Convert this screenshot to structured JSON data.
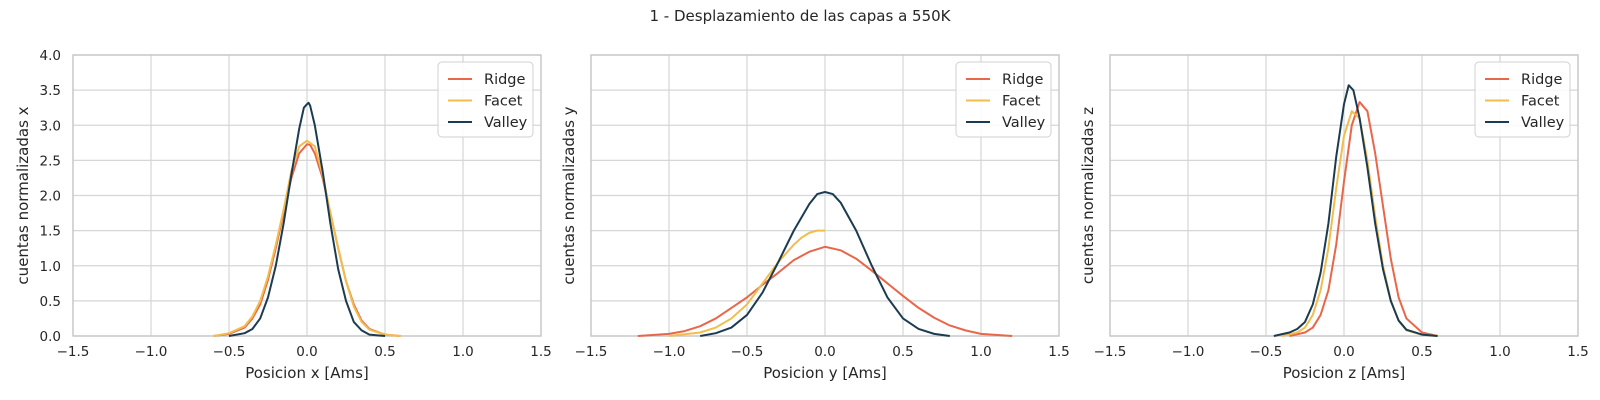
{
  "figure_title": "1 - Desplazamiento de las capas a 550K",
  "colors": {
    "Ridge": "#e8674a",
    "Facet": "#f2bd4c",
    "Valley": "#1b3c50",
    "grid": "#d6d6d6",
    "frame": "#c7c7c7"
  },
  "chart_data": [
    {
      "type": "line",
      "xlabel": "Posicion x [Ams]",
      "ylabel": "cuentas normalizadas x",
      "xlim": [
        -1.5,
        1.5
      ],
      "ylim": [
        0,
        4
      ],
      "xticks": [
        -1.5,
        -1.0,
        -0.5,
        0.0,
        0.5,
        1.0,
        1.5
      ],
      "yticks": [
        0.0,
        0.5,
        1.0,
        1.5,
        2.0,
        2.5,
        3.0,
        3.5,
        4.0
      ],
      "show_ytick_labels": true,
      "grid": true,
      "legend": "top-right",
      "series": [
        {
          "name": "Ridge",
          "x": [
            -0.6,
            -0.5,
            -0.4,
            -0.35,
            -0.3,
            -0.25,
            -0.2,
            -0.15,
            -0.1,
            -0.05,
            0.0,
            0.02,
            0.05,
            0.1,
            0.15,
            0.2,
            0.25,
            0.3,
            0.35,
            0.4,
            0.5,
            0.6
          ],
          "y": [
            0.0,
            0.03,
            0.12,
            0.25,
            0.45,
            0.8,
            1.25,
            1.75,
            2.25,
            2.6,
            2.73,
            2.72,
            2.6,
            2.25,
            1.75,
            1.25,
            0.78,
            0.45,
            0.22,
            0.1,
            0.02,
            0.0
          ]
        },
        {
          "name": "Facet",
          "x": [
            -0.6,
            -0.5,
            -0.4,
            -0.35,
            -0.3,
            -0.25,
            -0.2,
            -0.15,
            -0.1,
            -0.05,
            0.0,
            0.05,
            0.1,
            0.15,
            0.2,
            0.25,
            0.3,
            0.35,
            0.4,
            0.5,
            0.6
          ],
          "y": [
            0.0,
            0.04,
            0.14,
            0.28,
            0.5,
            0.85,
            1.3,
            1.8,
            2.35,
            2.7,
            2.78,
            2.7,
            2.3,
            1.75,
            1.25,
            0.78,
            0.42,
            0.2,
            0.09,
            0.02,
            0.0
          ]
        },
        {
          "name": "Valley",
          "x": [
            -0.5,
            -0.4,
            -0.35,
            -0.3,
            -0.25,
            -0.2,
            -0.15,
            -0.1,
            -0.05,
            -0.02,
            0.0,
            0.01,
            0.02,
            0.05,
            0.1,
            0.15,
            0.2,
            0.25,
            0.3,
            0.35,
            0.4,
            0.5
          ],
          "y": [
            0.0,
            0.04,
            0.1,
            0.25,
            0.55,
            1.0,
            1.6,
            2.3,
            2.95,
            3.25,
            3.3,
            3.32,
            3.28,
            3.0,
            2.35,
            1.6,
            0.95,
            0.5,
            0.2,
            0.08,
            0.02,
            0.0
          ]
        }
      ]
    },
    {
      "type": "line",
      "xlabel": "Posicion y [Ams]",
      "ylabel": "cuentas normalizadas y",
      "xlim": [
        -1.5,
        1.5
      ],
      "ylim": [
        0,
        4
      ],
      "xticks": [
        -1.5,
        -1.0,
        -0.5,
        0.0,
        0.5,
        1.0,
        1.5
      ],
      "yticks": [
        0.0,
        0.5,
        1.0,
        1.5,
        2.0,
        2.5,
        3.0,
        3.5,
        4.0
      ],
      "show_ytick_labels": false,
      "grid": true,
      "legend": "top-right",
      "series": [
        {
          "name": "Ridge",
          "x": [
            -1.2,
            -1.0,
            -0.9,
            -0.8,
            -0.7,
            -0.6,
            -0.5,
            -0.4,
            -0.3,
            -0.2,
            -0.1,
            0.0,
            0.1,
            0.2,
            0.3,
            0.4,
            0.5,
            0.6,
            0.7,
            0.8,
            0.9,
            1.0,
            1.2
          ],
          "y": [
            0.0,
            0.03,
            0.07,
            0.14,
            0.25,
            0.4,
            0.55,
            0.73,
            0.9,
            1.08,
            1.2,
            1.27,
            1.22,
            1.1,
            0.93,
            0.75,
            0.57,
            0.4,
            0.26,
            0.15,
            0.08,
            0.03,
            0.0
          ]
        },
        {
          "name": "Facet",
          "x": [
            -1.0,
            -0.8,
            -0.7,
            -0.6,
            -0.5,
            -0.4,
            -0.3,
            -0.2,
            -0.15,
            -0.1,
            -0.05,
            0.0
          ],
          "y": [
            0.0,
            0.05,
            0.12,
            0.25,
            0.45,
            0.75,
            1.05,
            1.3,
            1.4,
            1.47,
            1.5,
            1.5
          ]
        },
        {
          "name": "Valley",
          "x": [
            -0.8,
            -0.7,
            -0.6,
            -0.5,
            -0.4,
            -0.3,
            -0.2,
            -0.1,
            -0.05,
            0.0,
            0.05,
            0.1,
            0.2,
            0.3,
            0.4,
            0.5,
            0.6,
            0.7,
            0.8
          ],
          "y": [
            0.0,
            0.04,
            0.12,
            0.3,
            0.62,
            1.05,
            1.5,
            1.88,
            2.02,
            2.05,
            2.02,
            1.9,
            1.5,
            1.0,
            0.55,
            0.25,
            0.1,
            0.03,
            0.0
          ]
        }
      ]
    },
    {
      "type": "line",
      "xlabel": "Posicion z [Ams]",
      "ylabel": "cuentas normalizadas z",
      "xlim": [
        -1.5,
        1.5
      ],
      "ylim": [
        0,
        4
      ],
      "xticks": [
        -1.5,
        -1.0,
        -0.5,
        0.0,
        0.5,
        1.0,
        1.5
      ],
      "yticks": [
        0.0,
        0.5,
        1.0,
        1.5,
        2.0,
        2.5,
        3.0,
        3.5,
        4.0
      ],
      "show_ytick_labels": false,
      "grid": true,
      "legend": "top-right",
      "series": [
        {
          "name": "Ridge",
          "x": [
            -0.35,
            -0.25,
            -0.2,
            -0.15,
            -0.1,
            -0.05,
            0.0,
            0.05,
            0.1,
            0.15,
            0.2,
            0.25,
            0.3,
            0.35,
            0.4,
            0.5,
            0.6
          ],
          "y": [
            0.0,
            0.05,
            0.12,
            0.3,
            0.65,
            1.3,
            2.2,
            3.0,
            3.33,
            3.2,
            2.6,
            1.85,
            1.1,
            0.55,
            0.25,
            0.05,
            0.0
          ]
        },
        {
          "name": "Facet",
          "x": [
            -0.4,
            -0.3,
            -0.25,
            -0.2,
            -0.15,
            -0.1,
            -0.05,
            0.0,
            0.05,
            0.1,
            0.15,
            0.2,
            0.25,
            0.3,
            0.35,
            0.4,
            0.5,
            0.6
          ],
          "y": [
            0.0,
            0.05,
            0.12,
            0.3,
            0.65,
            1.25,
            2.1,
            2.85,
            3.2,
            3.1,
            2.5,
            1.7,
            1.0,
            0.5,
            0.22,
            0.08,
            0.02,
            0.0
          ]
        },
        {
          "name": "Valley",
          "x": [
            -0.45,
            -0.35,
            -0.3,
            -0.25,
            -0.2,
            -0.15,
            -0.1,
            -0.05,
            0.0,
            0.03,
            0.06,
            0.1,
            0.15,
            0.2,
            0.25,
            0.3,
            0.35,
            0.4,
            0.5,
            0.6
          ],
          "y": [
            0.0,
            0.05,
            0.1,
            0.2,
            0.45,
            0.9,
            1.6,
            2.55,
            3.3,
            3.57,
            3.5,
            3.1,
            2.4,
            1.6,
            0.95,
            0.5,
            0.22,
            0.09,
            0.02,
            0.0
          ]
        }
      ]
    }
  ]
}
